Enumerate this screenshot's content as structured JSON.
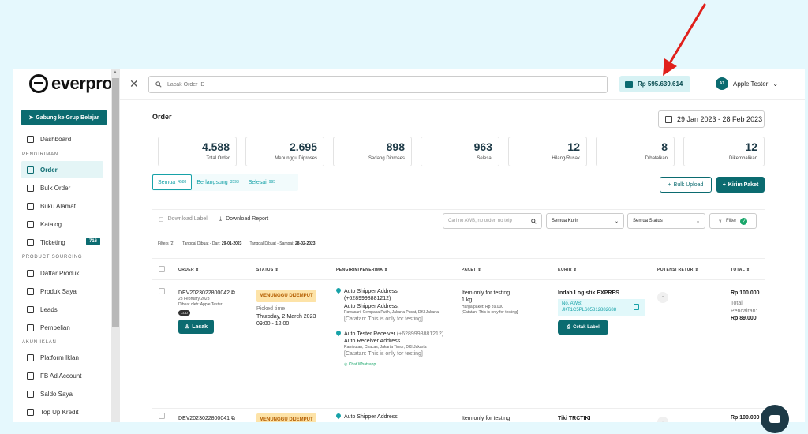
{
  "brand": {
    "name": "everpro"
  },
  "sidebar": {
    "join_button": "Gabung ke Grup Belajar",
    "dashboard": "Dashboard",
    "section_pengiriman": "PENGIRIMAN",
    "items_pengiriman": [
      {
        "label": "Order",
        "active": true
      },
      {
        "label": "Bulk Order"
      },
      {
        "label": "Buku Alamat"
      },
      {
        "label": "Katalog"
      },
      {
        "label": "Ticketing",
        "badge": "716"
      }
    ],
    "section_sourcing": "PRODUCT SOURCING",
    "items_sourcing": [
      {
        "label": "Daftar Produk"
      },
      {
        "label": "Produk Saya"
      },
      {
        "label": "Leads"
      },
      {
        "label": "Pembelian"
      }
    ],
    "section_iklan": "AKUN IKLAN",
    "items_iklan": [
      {
        "label": "Platform Iklan"
      },
      {
        "label": "FB Ad Account"
      },
      {
        "label": "Saldo Saya"
      },
      {
        "label": "Top Up Kredit"
      }
    ]
  },
  "header": {
    "search_placeholder": "Lacak Order ID",
    "balance": "Rp 595.639.614",
    "user_initials": "AT",
    "user_name": "Apple Tester"
  },
  "main": {
    "title": "Order",
    "date_range": "29 Jan 2023 - 28 Feb 2023",
    "stats": [
      {
        "value": "4.588",
        "label": "Total Order"
      },
      {
        "value": "2.695",
        "label": "Menunggu Diproses"
      },
      {
        "value": "898",
        "label": "Sedang Diproses"
      },
      {
        "value": "963",
        "label": "Selesai"
      },
      {
        "value": "12",
        "label": "Hilang/Rusak"
      },
      {
        "value": "8",
        "label": "Dibatalkan"
      },
      {
        "value": "12",
        "label": "Dikembalikan"
      }
    ],
    "tabs": [
      {
        "label": "Semua",
        "count": "4588"
      },
      {
        "label": "Berlangsung",
        "count": "3593"
      },
      {
        "label": "Selesai",
        "count": "995"
      }
    ],
    "bulk_upload": "Bulk Upload",
    "kirim_paket": "Kirim Paket",
    "download_label": "Download Label",
    "download_report": "Download Report",
    "awb_placeholder": "Cari no AWB, no order, no telp",
    "courier_select": "Semua Kurir",
    "status_select": "Semua Status",
    "filter_label": "Filter",
    "filters_count": "Filters (2)",
    "filter_1_label": "Tanggal Dibuat - Dari:",
    "filter_1_value": "29-01-2023",
    "filter_2_label": "Tanggal Dibuat - Sampai:",
    "filter_2_value": "28-02-2023",
    "columns": [
      "ORDER",
      "STATUS",
      "PENGIRIM/PENERIMA",
      "PAKET",
      "KURIR",
      "POTENSI RETUR",
      "TOTAL"
    ],
    "rows": [
      {
        "order_id": "DEV2023022800042",
        "date": "28 February 2023",
        "created_by": "Dibuat oleh: Apple Tester",
        "cod": "COD",
        "lacak": "Lacak",
        "status": "MENUNGGU DIJEMPUT",
        "picked_label": "Picked time",
        "picked_date": "Thursday, 2 March 2023",
        "picked_time": "09:00 - 12:00",
        "sender_title": "Auto Shipper Address",
        "sender_phone": "(+6289998881212)",
        "sender_name": "Auto Shipper Address,",
        "sender_addr": "Rawasari, Cempaka Putih, Jakarta Pusat, DKI Jakarta",
        "sender_note": "[Catatan: This is only for testing]",
        "receiver_title": "Auto Tester Receiver",
        "receiver_phone": "(+6289998881212)",
        "receiver_name": "Auto Receiver Address",
        "receiver_addr": "Rambutan, Ciracas, Jakarta Timur, DKI Jakarta",
        "receiver_note": "[Catatan: This is only for testing]",
        "chat_wa": "Chat Whatsapp",
        "package_item": "Item only for testing",
        "package_weight": "1 kg",
        "package_price": "Harga paket: Rp 89.000",
        "package_note": "[Catatan: This is only for testing]",
        "courier": "Indah Logistik EXPRES",
        "awb_label": "No. AWB:",
        "awb": "JKT1C5PL605812882688",
        "cetak": "Cetak Label",
        "retur": "-",
        "total": "Rp 100.000",
        "pencairan_label": "Total Pencairan:",
        "pencairan": "Rp 89.000"
      },
      {
        "order_id": "DEV2023022800041",
        "status": "MENUNGGU DIJEMPUT",
        "sender_title": "Auto Shipper Address",
        "package_item": "Item only for testing",
        "courier": "Tiki TRCTIKI",
        "retur": "-",
        "total": "Rp 100.000"
      }
    ]
  },
  "colors": {
    "primary": "#0b6b70",
    "accent": "#17a2a8",
    "status_bg": "#fde3a8",
    "page_bg": "#e5f8fd",
    "arrow": "#e0201b"
  }
}
